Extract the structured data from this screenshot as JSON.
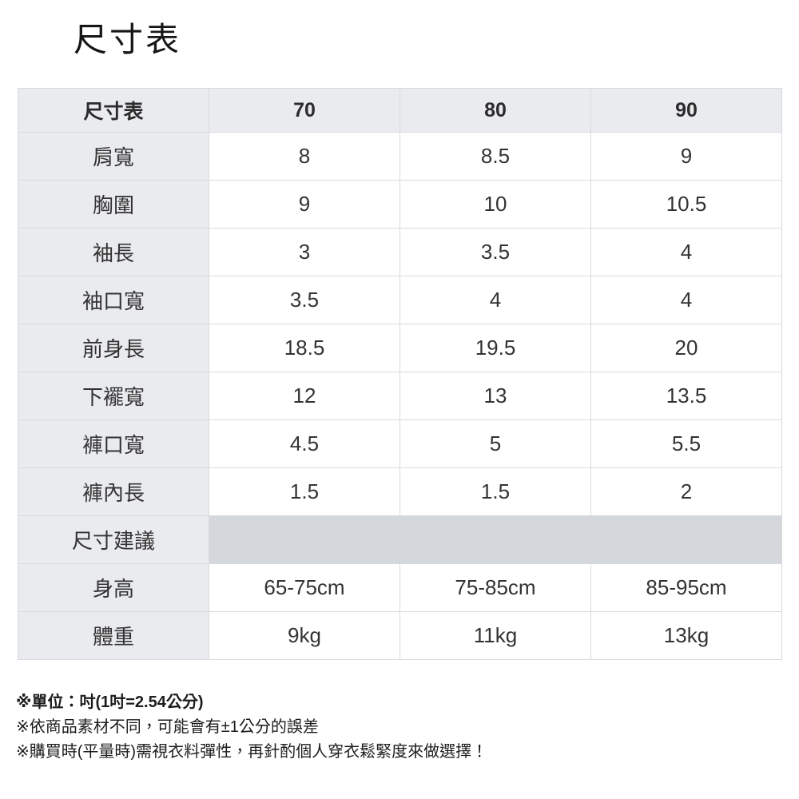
{
  "page_title": "尺寸表",
  "table": {
    "header": [
      "尺寸表",
      "70",
      "80",
      "90"
    ],
    "rows": [
      {
        "label": "肩寬",
        "values": [
          "8",
          "8.5",
          "9"
        ]
      },
      {
        "label": "胸圍",
        "values": [
          "9",
          "10",
          "10.5"
        ]
      },
      {
        "label": "袖長",
        "values": [
          "3",
          "3.5",
          "4"
        ]
      },
      {
        "label": "袖口寬",
        "values": [
          "3.5",
          "4",
          "4"
        ]
      },
      {
        "label": "前身長",
        "values": [
          "18.5",
          "19.5",
          "20"
        ]
      },
      {
        "label": "下襬寬",
        "values": [
          "12",
          "13",
          "13.5"
        ]
      },
      {
        "label": "褲口寬",
        "values": [
          "4.5",
          "5",
          "5.5"
        ]
      },
      {
        "label": "褲內長",
        "values": [
          "1.5",
          "1.5",
          "2"
        ]
      },
      {
        "label": "尺寸建議",
        "section": true,
        "values": []
      },
      {
        "label": "身高",
        "values": [
          "65-75cm",
          "75-85cm",
          "85-95cm"
        ]
      },
      {
        "label": "體重",
        "values": [
          "9kg",
          "11kg",
          "13kg"
        ]
      }
    ]
  },
  "notes": [
    {
      "text": "※單位：吋(1吋=2.54公分)",
      "bold": true
    },
    {
      "text": "※依商品素材不同，可能會有±1公分的誤差",
      "bold": false
    },
    {
      "text": "※購買時(平量時)需視衣料彈性，再針酌個人穿衣鬆緊度來做選擇！",
      "bold": false
    }
  ],
  "colors": {
    "header_bg": "#eaebee",
    "label_bg": "#eaebee",
    "suggestion_band_bg": "#d4d7db",
    "border": "#d9dadd",
    "text": "#333333",
    "title_text": "#161616"
  }
}
